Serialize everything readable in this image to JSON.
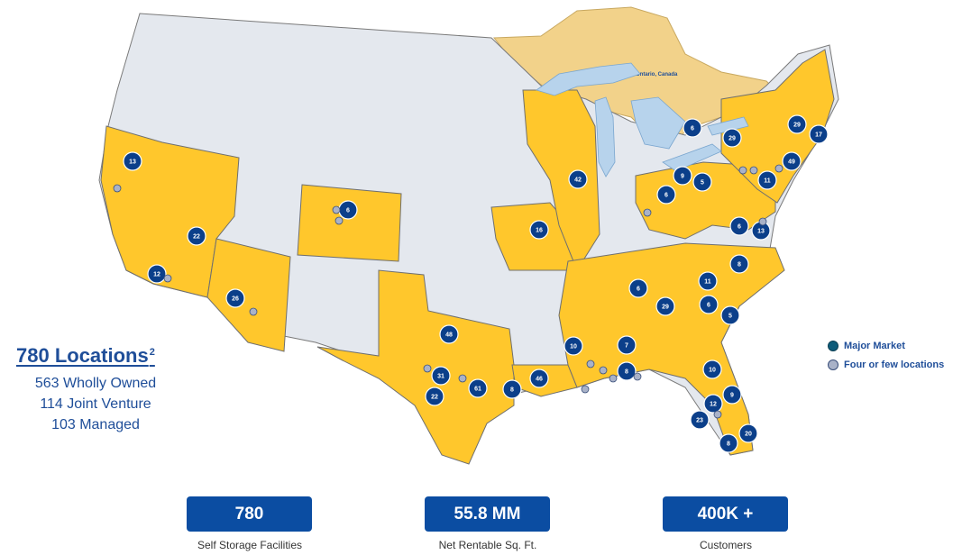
{
  "map": {
    "region_label": "Ontario, Canada",
    "colors": {
      "operating_state": "#ffc72c",
      "other_state": "#e4e8ee",
      "canada": "#f2d28a",
      "water": "#b7d3ec",
      "major_market": "#0b3f8a",
      "few_locations": "#a9b2c8",
      "state_border": "#7a7a7a"
    },
    "major_market_counts": [
      "13",
      "22",
      "12",
      "26",
      "6",
      "16",
      "42",
      "48",
      "31",
      "22",
      "61",
      "8",
      "46",
      "10",
      "7",
      "8",
      "6",
      "29",
      "11",
      "6",
      "8",
      "5",
      "10",
      "12",
      "9",
      "23",
      "20",
      "8",
      "9",
      "6",
      "5",
      "6",
      "29",
      "29",
      "17",
      "49",
      "11",
      "6",
      "13"
    ]
  },
  "summary": {
    "title": "780 Locations",
    "footnote": "2",
    "lines": [
      "563 Wholly Owned",
      "114 Joint Venture",
      "103 Managed"
    ]
  },
  "legend": {
    "major": "Major Market",
    "few": "Four or few locations"
  },
  "stats": [
    {
      "value": "780",
      "label": "Self Storage Facilities"
    },
    {
      "value": "55.8 MM",
      "label": "Net Rentable Sq. Ft."
    },
    {
      "value": "400K +",
      "label": "Customers"
    }
  ]
}
